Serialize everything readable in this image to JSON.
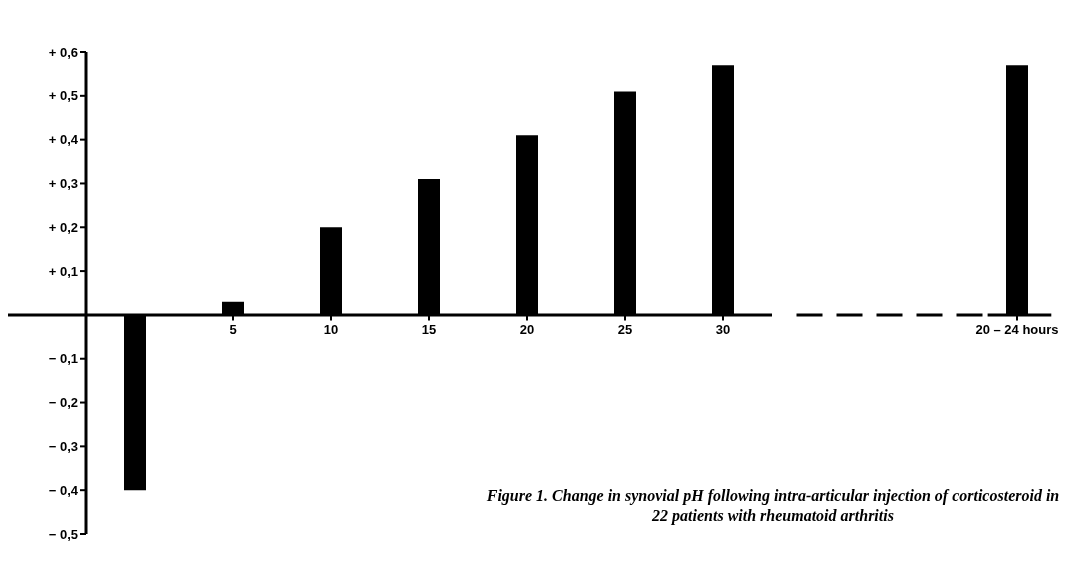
{
  "chart_data": {
    "type": "bar",
    "categories": [
      null,
      "5",
      "10",
      "15",
      "20",
      "25",
      "30",
      null,
      null,
      "20 – 24 hours"
    ],
    "values": [
      -0.4,
      0.03,
      0.2,
      0.31,
      0.41,
      0.51,
      0.57,
      null,
      null,
      0.57
    ],
    "color": "#000000",
    "ylim": [
      -0.5,
      0.6
    ],
    "yticks": [
      {
        "value": 0.6,
        "label": "+ 0,6"
      },
      {
        "value": 0.5,
        "label": "+ 0,5"
      },
      {
        "value": 0.4,
        "label": "+ 0,4"
      },
      {
        "value": 0.3,
        "label": "+ 0,3"
      },
      {
        "value": 0.2,
        "label": "+ 0,2"
      },
      {
        "value": 0.1,
        "label": "+ 0,1"
      },
      {
        "value": 0,
        "label": null
      },
      {
        "value": -0.1,
        "label": "− 0,1"
      },
      {
        "value": -0.2,
        "label": "− 0,2"
      },
      {
        "value": -0.3,
        "label": "− 0,3"
      },
      {
        "value": -0.4,
        "label": "− 0,4"
      },
      {
        "value": -0.5,
        "label": "− 0,5"
      }
    ],
    "grid": false,
    "legend": false,
    "annotations": [
      "Figure 1. Change in synovial pH following intra-articular injection of corticosteroid in 22 patients with rheumatoid arthritis"
    ]
  }
}
